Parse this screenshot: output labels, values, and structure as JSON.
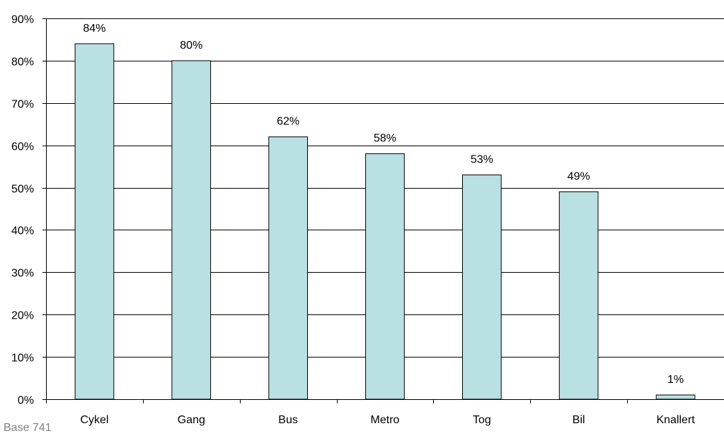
{
  "chart_data": {
    "type": "bar",
    "categories": [
      "Cykel",
      "Gang",
      "Bus",
      "Metro",
      "Tog",
      "Bil",
      "Knallert"
    ],
    "values": [
      84,
      80,
      62,
      58,
      53,
      49,
      1
    ],
    "data_labels": [
      "84%",
      "80%",
      "62%",
      "58%",
      "53%",
      "49%",
      "1%"
    ],
    "ylim": [
      0,
      90
    ],
    "y_ticks": [
      0,
      10,
      20,
      30,
      40,
      50,
      60,
      70,
      80,
      90
    ],
    "y_tick_labels": [
      "0%",
      "10%",
      "20%",
      "30%",
      "40%",
      "50%",
      "60%",
      "70%",
      "80%",
      "90%"
    ],
    "grid": true,
    "legend": "none",
    "bar_color": "#b9e0e2",
    "title": "",
    "xlabel": "",
    "ylabel": ""
  },
  "footnote": "Base 741"
}
